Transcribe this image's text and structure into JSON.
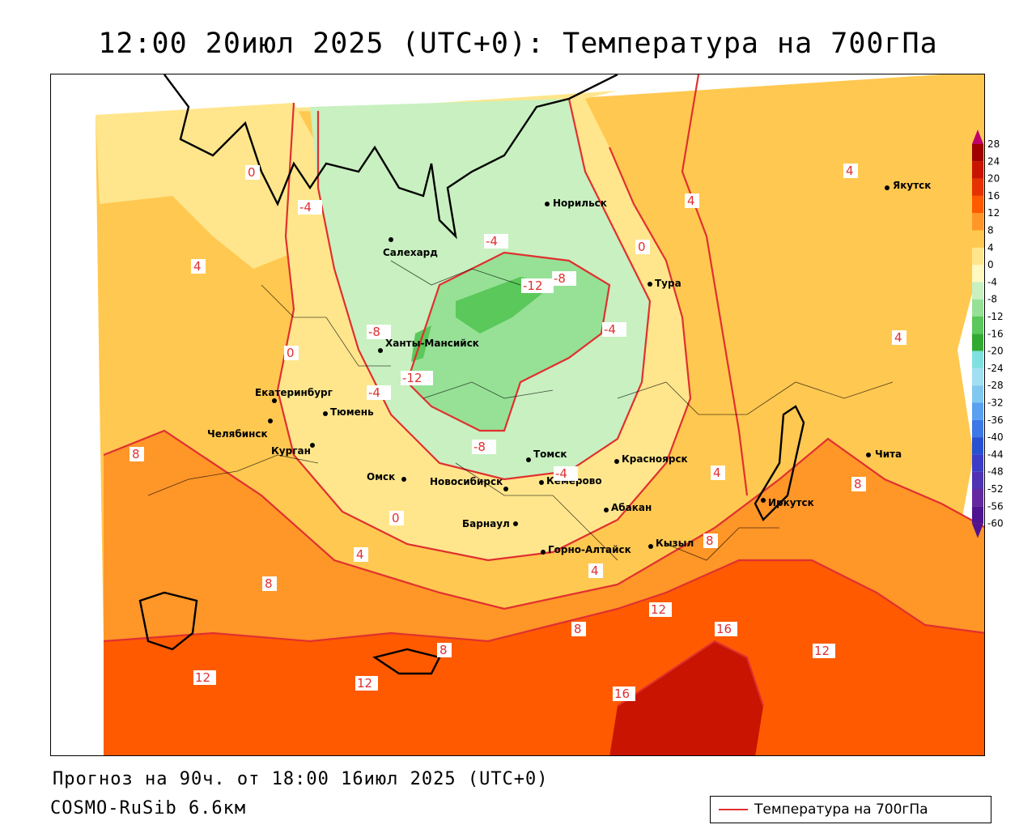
{
  "title": "12:00 20июл 2025 (UTC+0): Температура на 700гПа",
  "forecast": "Прогноз на 90ч. от 18:00 16июл 2025 (UTC+0)",
  "model": "COSMO-RuSib 6.6км",
  "legend": {
    "label": "Температура на 700гПа",
    "color": "#e03030"
  },
  "colorbar": {
    "ticks": [
      "28",
      "24",
      "20",
      "16",
      "12",
      "8",
      "4",
      "0",
      "-4",
      "-8",
      "-12",
      "-16",
      "-20",
      "-24",
      "-28",
      "-32",
      "-36",
      "-40",
      "-44",
      "-48",
      "-52",
      "-56",
      "-60"
    ],
    "colors": [
      "#c0006a",
      "#a00000",
      "#c81400",
      "#e63200",
      "#ff5a00",
      "#ff9628",
      "#ffc850",
      "#ffe68c",
      "#fff8c0",
      "#c8f0c0",
      "#96e196",
      "#5ac85a",
      "#32aa32",
      "#80e0e0",
      "#a0e0f0",
      "#80c8f0",
      "#5aa0f0",
      "#3c78e6",
      "#2850d2",
      "#3c3cc8",
      "#5032b4",
      "#6428a0",
      "#501490"
    ]
  },
  "cities": [
    {
      "name": "Норильск"
    },
    {
      "name": "Салехард"
    },
    {
      "name": "Тура"
    },
    {
      "name": "Якутск"
    },
    {
      "name": "Ханты-Мансийск"
    },
    {
      "name": "Екатеринбург"
    },
    {
      "name": "Тюмень"
    },
    {
      "name": "Челябинск"
    },
    {
      "name": "Курган"
    },
    {
      "name": "Омск"
    },
    {
      "name": "Новосибирск"
    },
    {
      "name": "Томск"
    },
    {
      "name": "Кемерово"
    },
    {
      "name": "Красноярск"
    },
    {
      "name": "Абакан"
    },
    {
      "name": "Барнаул"
    },
    {
      "name": "Горно-Алтайск"
    },
    {
      "name": "Кызыл"
    },
    {
      "name": "Иркутск"
    },
    {
      "name": "Чита"
    }
  ],
  "contour_labels": [
    "0",
    "-4",
    "4",
    "-4",
    "0",
    "-8",
    "-12",
    "4",
    "-8",
    "-4",
    "0",
    "-12",
    "-4",
    "4",
    "4",
    "8",
    "-8",
    "-4",
    "0",
    "4",
    "8",
    "8",
    "4",
    "8",
    "12",
    "8",
    "16",
    "12",
    "8",
    "12",
    "12",
    "16",
    "4"
  ]
}
